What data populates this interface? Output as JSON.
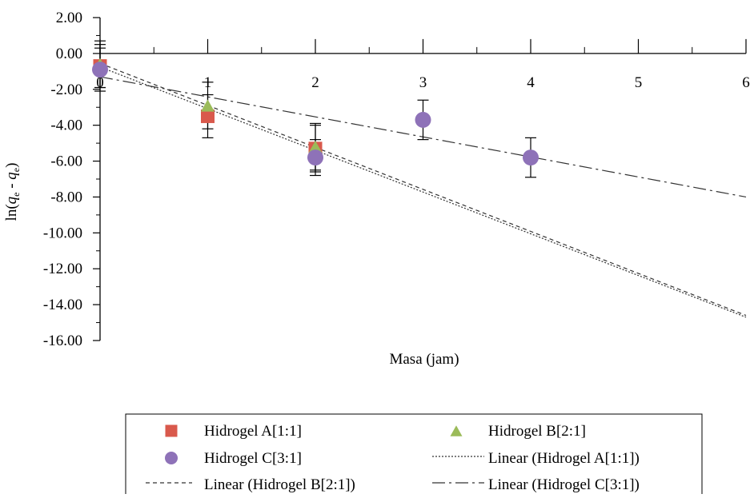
{
  "chart_data": {
    "type": "scatter",
    "title": "",
    "xlabel": "Masa (jam)",
    "ylabel_prefix": "ln(",
    "ylabel_q1": "q",
    "ylabel_sub1": "e",
    "ylabel_mid": " - ",
    "ylabel_q2": "q",
    "ylabel_sub2": "e",
    "ylabel_suffix": ")",
    "xlim": [
      0,
      6
    ],
    "ylim": [
      -16,
      2
    ],
    "x_ticks": [
      0,
      1,
      2,
      3,
      4,
      5,
      6
    ],
    "x_tick_labels": [
      "0",
      "1",
      "2",
      "3",
      "4",
      "5",
      "6"
    ],
    "y_ticks": [
      2,
      0,
      -2,
      -4,
      -6,
      -8,
      -10,
      -12,
      -14,
      -16
    ],
    "y_tick_labels": [
      "2.00",
      "0.00",
      "-2.00",
      "-4.00",
      "-6.00",
      "-8.00",
      "-10.00",
      "-12.00",
      "-14.00",
      "-16.00"
    ],
    "grid": false,
    "legend_position": "bottom",
    "series": [
      {
        "name": "Hidrogel A[1:1]",
        "marker": "square",
        "color": "#D9594C",
        "x": [
          0,
          1,
          2
        ],
        "y": [
          -0.7,
          -3.5,
          -5.3
        ],
        "err": [
          1.2,
          1.2,
          1.3
        ]
      },
      {
        "name": "Hidrogel B[2:1]",
        "marker": "triangle",
        "color": "#9BBB59",
        "x": [
          0,
          1,
          2
        ],
        "y": [
          -0.6,
          -2.9,
          -5.2
        ],
        "err": [
          1.3,
          1.3,
          1.3
        ]
      },
      {
        "name": "Hidrogel C[3:1]",
        "marker": "circle",
        "color": "#8E72B8",
        "x": [
          0,
          2,
          3,
          4
        ],
        "y": [
          -0.9,
          -5.8,
          -3.7,
          -5.8
        ],
        "err": [
          1.2,
          1.0,
          1.1,
          1.1
        ]
      }
    ],
    "trendlines": [
      {
        "name": "Linear (Hidrogel A[1:1])",
        "dash": "dotted",
        "x": [
          0,
          6
        ],
        "y": [
          -0.75,
          -14.7
        ]
      },
      {
        "name": "Linear (Hidrogel B[2:1])",
        "dash": "dashed",
        "x": [
          0,
          6
        ],
        "y": [
          -0.55,
          -14.6
        ]
      },
      {
        "name": "Linear (Hidrogel C[3:1])",
        "dash": "dashdot",
        "x": [
          0,
          6
        ],
        "y": [
          -1.3,
          -8.0
        ]
      }
    ]
  }
}
